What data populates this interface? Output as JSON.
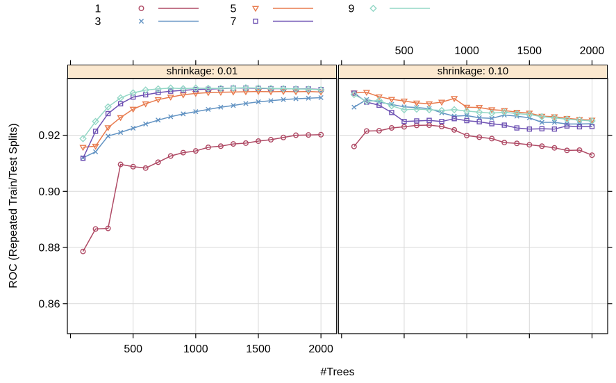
{
  "colors": {
    "strip_bg": "#FBE8CF",
    "strip_border": "#000000",
    "grid": "#D9D9D9",
    "axis": "#000000",
    "series": {
      "1": "#AF4A65",
      "3": "#6293C3",
      "5": "#E87B4E",
      "7": "#6E52B3",
      "9": "#93D7C6"
    }
  },
  "legend": {
    "entries": [
      {
        "label": "1",
        "marker": "circle",
        "color": "#AF4A65"
      },
      {
        "label": "3",
        "marker": "x",
        "color": "#6293C3"
      },
      {
        "label": "5",
        "marker": "triangle-down",
        "color": "#E87B4E"
      },
      {
        "label": "7",
        "marker": "square",
        "color": "#6E52B3"
      },
      {
        "label": "9",
        "marker": "diamond",
        "color": "#93D7C6"
      }
    ]
  },
  "chart_data": {
    "type": "line",
    "title": "",
    "xlabel": "#Trees",
    "ylabel": "ROC (Repeated Train/Test Splits)",
    "x": [
      100,
      200,
      300,
      400,
      500,
      600,
      700,
      800,
      900,
      1000,
      1100,
      1200,
      1300,
      1400,
      1500,
      1600,
      1700,
      1800,
      1900,
      2000
    ],
    "xticks": [
      500,
      1000,
      1500,
      2000
    ],
    "xticks_minor_unlabeled": [
      0
    ],
    "yticks": [
      0.86,
      0.88,
      0.9,
      0.92
    ],
    "xlim": [
      -25,
      2125
    ],
    "ylim": [
      0.8493,
      0.9402
    ],
    "grid": true,
    "legend_position": "top",
    "panels": [
      {
        "label": "shrinkage: 0.01",
        "series": [
          {
            "name": "1",
            "marker": "circle",
            "color": "#AF4A65",
            "values": [
              0.8786,
              0.8866,
              0.8868,
              0.9096,
              0.9088,
              0.9083,
              0.9104,
              0.9126,
              0.9138,
              0.9144,
              0.9157,
              0.9161,
              0.9169,
              0.9172,
              0.9179,
              0.9184,
              0.9192,
              0.92,
              0.9201,
              0.9202
            ]
          },
          {
            "name": "3",
            "marker": "x",
            "color": "#6293C3",
            "values": [
              0.912,
              0.9141,
              0.9197,
              0.921,
              0.9225,
              0.924,
              0.9254,
              0.9266,
              0.9276,
              0.9284,
              0.9292,
              0.93,
              0.9306,
              0.9313,
              0.9319,
              0.9323,
              0.9327,
              0.933,
              0.9332,
              0.9334
            ]
          },
          {
            "name": "5",
            "marker": "triangle-down",
            "color": "#E87B4E",
            "values": [
              0.9157,
              0.9161,
              0.9227,
              0.9263,
              0.9293,
              0.9312,
              0.9327,
              0.9336,
              0.9344,
              0.9349,
              0.9352,
              0.9353,
              0.9354,
              0.9355,
              0.9356,
              0.9355,
              0.9356,
              0.9355,
              0.9356,
              0.9354
            ]
          },
          {
            "name": "7",
            "marker": "square",
            "color": "#6E52B3",
            "values": [
              0.9118,
              0.9214,
              0.9277,
              0.9312,
              0.9336,
              0.9344,
              0.9352,
              0.9357,
              0.936,
              0.9363,
              0.9364,
              0.9366,
              0.9368,
              0.9368,
              0.9367,
              0.9366,
              0.9366,
              0.9365,
              0.9365,
              0.9363
            ]
          },
          {
            "name": "9",
            "marker": "diamond",
            "color": "#93D7C6",
            "values": [
              0.9188,
              0.9249,
              0.9301,
              0.9333,
              0.9351,
              0.9361,
              0.9365,
              0.9368,
              0.9366,
              0.9368,
              0.9367,
              0.9367,
              0.9368,
              0.9369,
              0.9368,
              0.9367,
              0.9366,
              0.9365,
              0.9364,
              0.9362
            ]
          }
        ]
      },
      {
        "label": "shrinkage: 0.10",
        "series": [
          {
            "name": "1",
            "marker": "circle",
            "color": "#AF4A65",
            "values": [
              0.916,
              0.9215,
              0.9216,
              0.9226,
              0.923,
              0.9235,
              0.9236,
              0.9231,
              0.9219,
              0.9199,
              0.9193,
              0.9188,
              0.9174,
              0.9171,
              0.9166,
              0.9161,
              0.9155,
              0.9146,
              0.9147,
              0.9129
            ]
          },
          {
            "name": "3",
            "marker": "x",
            "color": "#6293C3",
            "values": [
              0.93,
              0.9327,
              0.9318,
              0.931,
              0.9301,
              0.9299,
              0.9295,
              0.928,
              0.9268,
              0.927,
              0.9262,
              0.926,
              0.9272,
              0.9268,
              0.9262,
              0.9246,
              0.9246,
              0.924,
              0.924,
              0.9241
            ]
          },
          {
            "name": "5",
            "marker": "triangle-down",
            "color": "#E87B4E",
            "values": [
              0.9351,
              0.9353,
              0.9337,
              0.9328,
              0.9322,
              0.9315,
              0.9312,
              0.9318,
              0.9331,
              0.93,
              0.9299,
              0.9291,
              0.9288,
              0.9282,
              0.9279,
              0.9268,
              0.9266,
              0.926,
              0.9256,
              0.9254
            ]
          },
          {
            "name": "7",
            "marker": "square",
            "color": "#6E52B3",
            "values": [
              0.935,
              0.9318,
              0.9307,
              0.9281,
              0.9249,
              0.9251,
              0.9253,
              0.9249,
              0.9259,
              0.9252,
              0.9248,
              0.9241,
              0.9236,
              0.9226,
              0.9222,
              0.9223,
              0.9222,
              0.9233,
              0.923,
              0.9231
            ]
          },
          {
            "name": "9",
            "marker": "diamond",
            "color": "#93D7C6",
            "values": [
              0.9345,
              0.9321,
              0.9324,
              0.9305,
              0.9291,
              0.9293,
              0.9291,
              0.9288,
              0.9291,
              0.9286,
              0.9282,
              0.9279,
              0.9282,
              0.9277,
              0.9274,
              0.9266,
              0.9262,
              0.9257,
              0.9254,
              0.9251
            ]
          }
        ]
      }
    ]
  }
}
